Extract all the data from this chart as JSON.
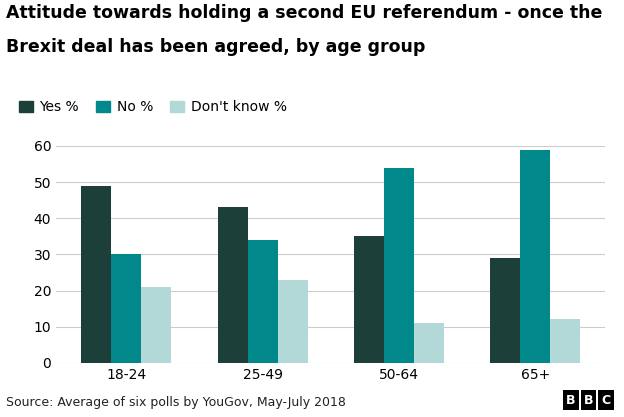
{
  "title_line1": "Attitude towards holding a second EU referendum - once the",
  "title_line2": "Brexit deal has been agreed, by age group",
  "categories": [
    "18-24",
    "25-49",
    "50-64",
    "65+"
  ],
  "series": {
    "Yes %": [
      49,
      43,
      35,
      29
    ],
    "No %": [
      30,
      34,
      54,
      59
    ],
    "Don't know %": [
      21,
      23,
      11,
      12
    ]
  },
  "colors": {
    "Yes %": "#1c3f3a",
    "No %": "#00888a",
    "Don't know %": "#b2d8d8"
  },
  "ylim": [
    0,
    60
  ],
  "yticks": [
    0,
    10,
    20,
    30,
    40,
    50,
    60
  ],
  "bar_width": 0.22,
  "legend_labels": [
    "Yes %",
    "No %",
    "Don't know %"
  ],
  "source": "Source: Average of six polls by YouGov, May-July 2018",
  "background_color": "#ffffff",
  "grid_color": "#cccccc",
  "title_fontsize": 12.5,
  "axis_fontsize": 10,
  "legend_fontsize": 10,
  "source_fontsize": 9
}
